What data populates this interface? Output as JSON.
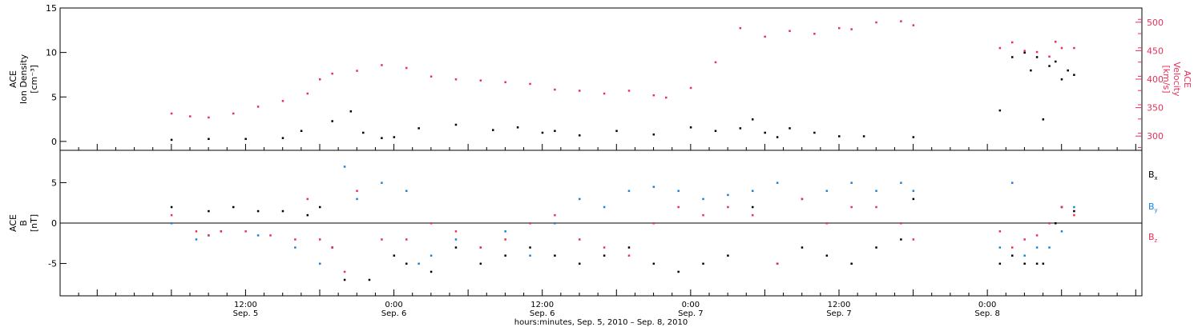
{
  "chart_data": [
    {
      "type": "scatter",
      "panel": "top",
      "ylabel_lines": [
        "ACE",
        "Ion Density",
        "[cm⁻³]"
      ],
      "ylabel_right_lines": [
        "ACE",
        "Velocity",
        "[km/s]"
      ],
      "ylim": [
        -1,
        15
      ],
      "ylim_right": [
        275,
        525
      ],
      "yticks": [
        0,
        5,
        10,
        15
      ],
      "yticks_right": [
        300,
        350,
        400,
        450,
        500
      ],
      "series": [
        {
          "name": "",
          "color": "#000000",
          "axis": "left",
          "x": [
            0,
            6,
            12,
            18,
            21,
            26,
            29,
            31,
            34,
            36,
            40,
            46,
            52,
            56,
            60,
            62,
            66,
            72,
            78,
            84,
            88,
            92,
            94,
            96,
            98,
            100,
            104,
            108,
            112,
            120,
            134,
            136,
            138,
            139,
            140,
            141,
            142,
            143,
            144,
            145,
            146
          ],
          "values": [
            0.2,
            0.3,
            0.3,
            0.4,
            1.2,
            2.3,
            3.4,
            1.0,
            0.4,
            0.5,
            1.5,
            1.9,
            1.3,
            1.6,
            1.0,
            1.2,
            0.7,
            1.2,
            0.8,
            1.6,
            1.2,
            1.5,
            2.5,
            1.0,
            0.5,
            1.5,
            1.0,
            0.6,
            0.6,
            0.5,
            3.5,
            9.5,
            10.0,
            8.0,
            9.5,
            2.5,
            8.5,
            9.0,
            7.0,
            8.0,
            7.5
          ]
        },
        {
          "name": "",
          "color": "#e8305a",
          "axis": "right",
          "x": [
            0,
            3,
            6,
            10,
            14,
            18,
            22,
            24,
            26,
            30,
            34,
            38,
            42,
            46,
            50,
            54,
            58,
            62,
            66,
            70,
            74,
            78,
            80,
            84,
            88,
            92,
            96,
            100,
            104,
            108,
            110,
            114,
            118,
            120,
            134,
            136,
            138,
            140,
            142,
            143,
            144,
            146
          ],
          "values": [
            340,
            335,
            333,
            340,
            352,
            362,
            375,
            400,
            410,
            415,
            425,
            420,
            405,
            400,
            398,
            395,
            392,
            382,
            380,
            375,
            380,
            372,
            368,
            385,
            430,
            490,
            475,
            485,
            480,
            490,
            488,
            500,
            502,
            495,
            455,
            465,
            450,
            448,
            440,
            466,
            455,
            455
          ]
        }
      ]
    },
    {
      "type": "scatter",
      "panel": "bottom",
      "ylabel_lines": [
        "ACE",
        "B",
        "[nT]"
      ],
      "ylim": [
        -9,
        9
      ],
      "yticks": [
        -5,
        0,
        5
      ],
      "legend_placement": "right",
      "series": [
        {
          "name": "Bx",
          "color": "#000000",
          "x": [
            0,
            6,
            10,
            14,
            18,
            22,
            24,
            26,
            28,
            32,
            36,
            38,
            42,
            46,
            50,
            54,
            58,
            62,
            66,
            70,
            74,
            78,
            82,
            86,
            90,
            94,
            98,
            102,
            106,
            110,
            114,
            118,
            120,
            134,
            136,
            138,
            140,
            141,
            143,
            144,
            146
          ],
          "values": [
            2,
            1.5,
            2,
            1.5,
            1.5,
            1,
            2,
            -3,
            -7,
            -7,
            -4,
            -5,
            -6,
            -3,
            -5,
            -4,
            -3,
            -4,
            -5,
            -4,
            -3,
            -5,
            -6,
            -5,
            -4,
            2,
            -5,
            -3,
            -4,
            -5,
            -3,
            -2,
            3,
            -5,
            -4,
            -5,
            -5,
            -5,
            0,
            2,
            1.5
          ]
        },
        {
          "name": "By",
          "color": "#1a82d8",
          "x": [
            0,
            4,
            6,
            8,
            14,
            20,
            24,
            26,
            28,
            30,
            34,
            38,
            40,
            42,
            46,
            50,
            54,
            58,
            62,
            66,
            70,
            74,
            78,
            82,
            86,
            90,
            94,
            98,
            102,
            106,
            110,
            114,
            118,
            120,
            134,
            136,
            138,
            140,
            142,
            144,
            146
          ],
          "values": [
            0,
            -2,
            -1.5,
            -1,
            -1.5,
            -3,
            -5,
            -3,
            7,
            3,
            5,
            4,
            -5,
            -4,
            -2,
            -3,
            -1,
            -4,
            0,
            3,
            2,
            4,
            4.5,
            4,
            3,
            3.5,
            4,
            5,
            3,
            4,
            5,
            4,
            5,
            4,
            -3,
            5,
            -4,
            -3,
            -3,
            -1,
            2
          ]
        },
        {
          "name": "Bz",
          "color": "#e8305a",
          "x": [
            0,
            4,
            6,
            8,
            12,
            16,
            20,
            22,
            24,
            26,
            28,
            30,
            34,
            38,
            42,
            46,
            50,
            54,
            58,
            62,
            66,
            70,
            74,
            78,
            82,
            86,
            90,
            94,
            98,
            102,
            106,
            110,
            114,
            118,
            120,
            134,
            136,
            138,
            140,
            142,
            144,
            146
          ],
          "values": [
            1,
            -1,
            -1.5,
            -1,
            -1,
            -1.5,
            -2,
            3,
            -2,
            -3,
            -6,
            4,
            -2,
            -2,
            0,
            -1,
            -3,
            -2,
            0,
            1,
            -2,
            -3,
            -4,
            0,
            2,
            1,
            2,
            1,
            -5,
            3,
            0,
            2,
            2,
            0,
            -2,
            -1,
            -3,
            -2,
            -1.5,
            0,
            2,
            1
          ]
        }
      ]
    }
  ],
  "x_axis": {
    "xlim_hours": [
      -18,
      157
    ],
    "ticks": [
      {
        "hour": 12,
        "time": "12:00",
        "date": "Sep. 5"
      },
      {
        "hour": 36,
        "time": "0:00",
        "date": "Sep. 6"
      },
      {
        "hour": 60,
        "time": "12:00",
        "date": "Sep. 6"
      },
      {
        "hour": 84,
        "time": "0:00",
        "date": "Sep. 7"
      },
      {
        "hour": 108,
        "time": "12:00",
        "date": "Sep. 7"
      },
      {
        "hour": 132,
        "time": "0:00",
        "date": "Sep. 8"
      }
    ],
    "xlabel": "hours:minutes, Sep.  5, 2010 – Sep.  8, 2010"
  },
  "legend": {
    "Bx": {
      "base": "B",
      "sub": "x"
    },
    "By": {
      "base": "B",
      "sub": "y"
    },
    "Bz": {
      "base": "B",
      "sub": "z"
    }
  }
}
